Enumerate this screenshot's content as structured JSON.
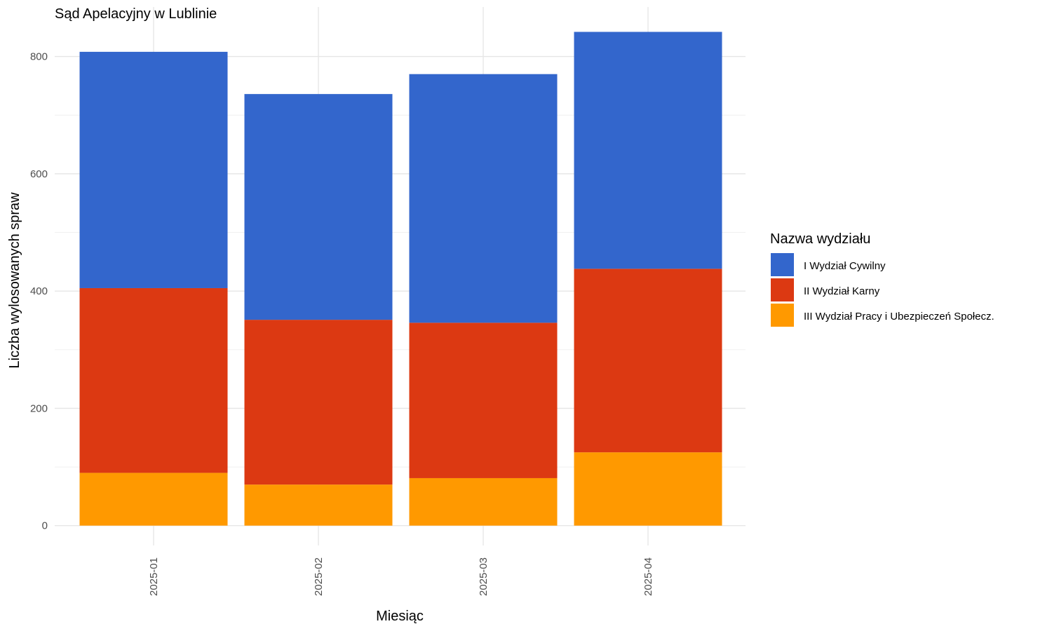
{
  "chart_data": {
    "type": "bar",
    "stacked": true,
    "title": "Sąd Apelacyjny w Lublinie",
    "xlabel": "Miesiąc",
    "ylabel": "Liczba wylosowanych spraw",
    "categories": [
      "2025-01",
      "2025-02",
      "2025-03",
      "2025-04"
    ],
    "ylim": [
      0,
      880
    ],
    "yticks": [
      0,
      200,
      400,
      600,
      800
    ],
    "grid": true,
    "legend": {
      "title": "Nazwa wydziału",
      "position": "right"
    },
    "series": [
      {
        "name": "III Wydział Pracy i Ubezpieczeń Społecz.",
        "color": "#FF9900",
        "values": [
          90,
          70,
          81,
          125
        ]
      },
      {
        "name": "II Wydział Karny",
        "color": "#DC3912",
        "values": [
          315,
          281,
          265,
          313
        ]
      },
      {
        "name": "I Wydział Cywilny",
        "color": "#3366CC",
        "values": [
          403,
          385,
          424,
          404
        ]
      }
    ],
    "legend_order": [
      "I Wydział Cywilny",
      "II Wydział Karny",
      "III Wydział Pracy i Ubezpieczeń Społecz."
    ]
  }
}
